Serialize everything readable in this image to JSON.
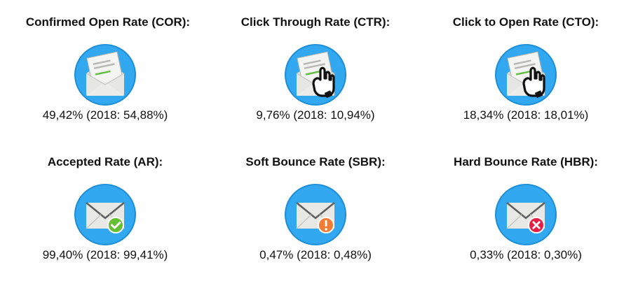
{
  "metrics": [
    {
      "title": "Confirmed Open Rate (COR):",
      "value": "49,42% (2018: 54,88%)",
      "icon": "open-envelope-icon"
    },
    {
      "title": "Click Through Rate (CTR):",
      "value": "9,76% (2018: 10,94%)",
      "icon": "envelope-click-icon"
    },
    {
      "title": "Click to Open Rate (CTO):",
      "value": "18,34% (2018: 18,01%)",
      "icon": "envelope-click-icon"
    },
    {
      "title": "Accepted Rate (AR):",
      "value": "99,40% (2018: 99,41%)",
      "icon": "envelope-check-icon"
    },
    {
      "title": "Soft Bounce Rate (SBR):",
      "value": "0,47% (2018: 0,48%)",
      "icon": "envelope-warning-icon"
    },
    {
      "title": "Hard Bounce Rate (HBR):",
      "value": "0,33% (2018: 0,30%)",
      "icon": "envelope-error-icon"
    }
  ],
  "colors": {
    "circle": "#31a8f0",
    "circle_dark": "#1d8ed8",
    "envelope": "#e6e6e2",
    "success": "#65bf32",
    "warning": "#f37c35",
    "error": "#e51f45",
    "accent_line": "#64bd45"
  }
}
